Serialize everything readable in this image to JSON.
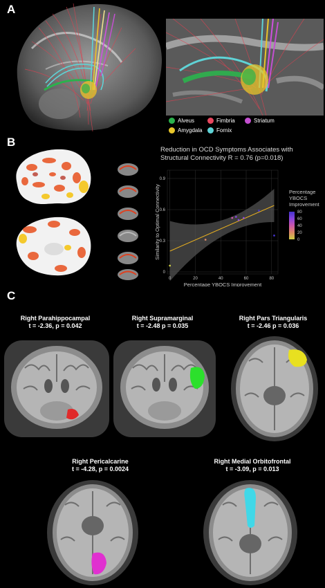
{
  "panels": {
    "a": "A",
    "b": "B",
    "c": "C"
  },
  "legend_a": [
    {
      "label": "Alveus",
      "color": "#2bb24c"
    },
    {
      "label": "Fimbria",
      "color": "#e8475f"
    },
    {
      "label": "Striatum",
      "color": "#c44fd1"
    },
    {
      "label": "Amygdala",
      "color": "#e8c62a"
    },
    {
      "label": "Fornix",
      "color": "#5fd3d6"
    }
  ],
  "chart_data": {
    "type": "scatter",
    "title_line1": "Reduction in OCD Symptoms Associates with",
    "title_line2": "Structural Connectivity R = 0.76 (p=0.018)",
    "xlabel": "Percentage YBOCS Improvement",
    "ylabel": "Similarity to Optimal Connectivity",
    "xlim": [
      -2,
      85
    ],
    "ylim": [
      -0.02,
      0.98
    ],
    "xticks": [
      0,
      20,
      40,
      60,
      80
    ],
    "yticks": [
      0,
      0.3,
      0.6,
      0.9
    ],
    "ytick_labels": [
      "0",
      "0.3",
      "0.6",
      "0.9"
    ],
    "points": [
      {
        "x": 0,
        "y": 0.06
      },
      {
        "x": 28,
        "y": 0.31
      },
      {
        "x": 49,
        "y": 0.52
      },
      {
        "x": 52,
        "y": 0.53
      },
      {
        "x": 54,
        "y": 0.5
      },
      {
        "x": 58,
        "y": 0.52
      },
      {
        "x": 70,
        "y": 0.59
      },
      {
        "x": 82,
        "y": 0.35
      }
    ],
    "fit": {
      "x0": 0,
      "y0": 0.2,
      "x1": 82,
      "y1": 0.64
    },
    "colorbar": {
      "title_lines": [
        "Percentage",
        "YBOCS",
        "Improvement"
      ],
      "ticks": [
        80,
        60,
        40,
        20,
        0
      ],
      "colors": [
        "#4433cc",
        "#8844dd",
        "#cc55aa",
        "#dd8866",
        "#cccc44"
      ]
    }
  },
  "panel_c": [
    {
      "region": "Right Parahippocampal",
      "stat": "t = -2.36, p = 0.042",
      "color": "#e02a2a"
    },
    {
      "region": "Right Supramarginal",
      "stat": "t = -2.48 p = 0.035",
      "color": "#2ce02c"
    },
    {
      "region": "Right Pars Triangularis",
      "stat": "t = -2.46 p = 0.036",
      "color": "#e8e020"
    },
    {
      "region": "Right Pericalcarine",
      "stat": "t = -4.28, p = 0.0024",
      "color": "#e030d0"
    },
    {
      "region": "Right Medial Orbitofrontal",
      "stat": "t = -3.09, p = 0.013",
      "color": "#40d8e8"
    }
  ]
}
